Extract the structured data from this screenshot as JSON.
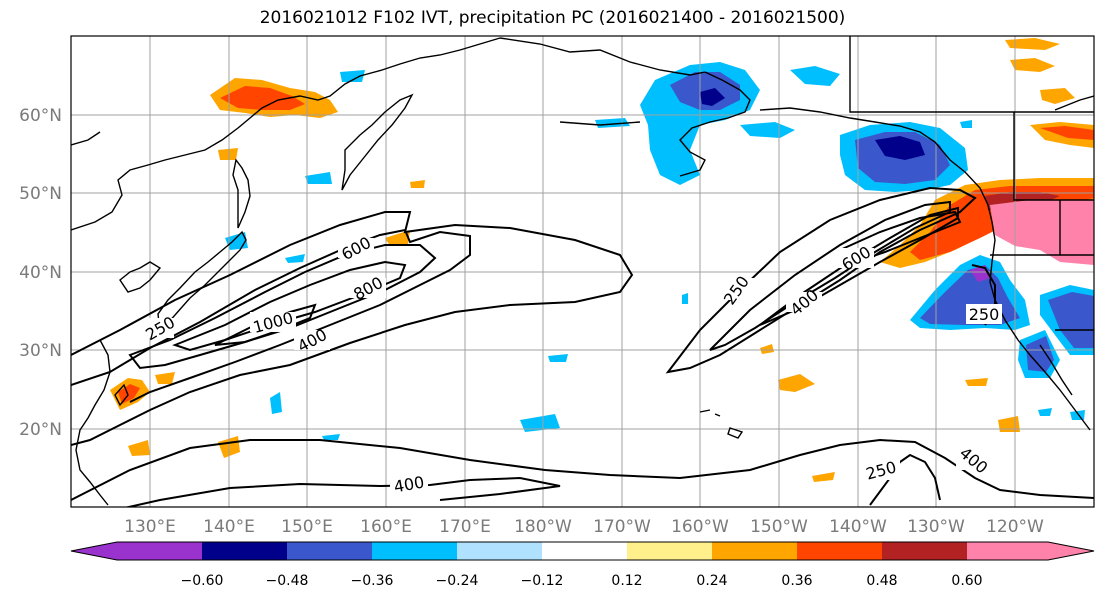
{
  "title": "2016021012 F102 IVT, precipitation PC (2016021400 - 2016021500)",
  "lat_labels": [
    "60°N",
    "50°N",
    "40°N",
    "30°N",
    "20°N"
  ],
  "lon_labels": [
    "130°E",
    "140°E",
    "150°E",
    "160°E",
    "170°E",
    "180°W",
    "170°W",
    "160°W",
    "150°W",
    "140°W",
    "130°W",
    "120°W"
  ],
  "colorbar": {
    "colors": [
      "#9a32cd",
      "#00008b",
      "#3a57cc",
      "#00bfff",
      "#b0e2ff",
      "#ffffff",
      "#fff08c",
      "#ffa500",
      "#ff4500",
      "#b22222",
      "#ff82ab"
    ],
    "ticks": [
      "−0.60",
      "−0.48",
      "−0.36",
      "−0.24",
      "−0.12",
      "0.12",
      "0.24",
      "0.36",
      "0.48",
      "0.60"
    ]
  },
  "contour_labels": [
    {
      "text": "600",
      "ref": "west-jet"
    },
    {
      "text": "800",
      "ref": "west-jet"
    },
    {
      "text": "1000",
      "ref": "west-jet"
    },
    {
      "text": "400",
      "ref": "west-jet"
    },
    {
      "text": "250",
      "ref": "west-jet"
    },
    {
      "text": "250",
      "ref": "east-jet"
    },
    {
      "text": "400",
      "ref": "east-jet"
    },
    {
      "text": "600",
      "ref": "east-jet"
    },
    {
      "text": "250",
      "ref": "east-jet"
    },
    {
      "text": "400",
      "ref": "south"
    },
    {
      "text": "250",
      "ref": "south"
    },
    {
      "text": "400",
      "ref": "south"
    }
  ]
}
